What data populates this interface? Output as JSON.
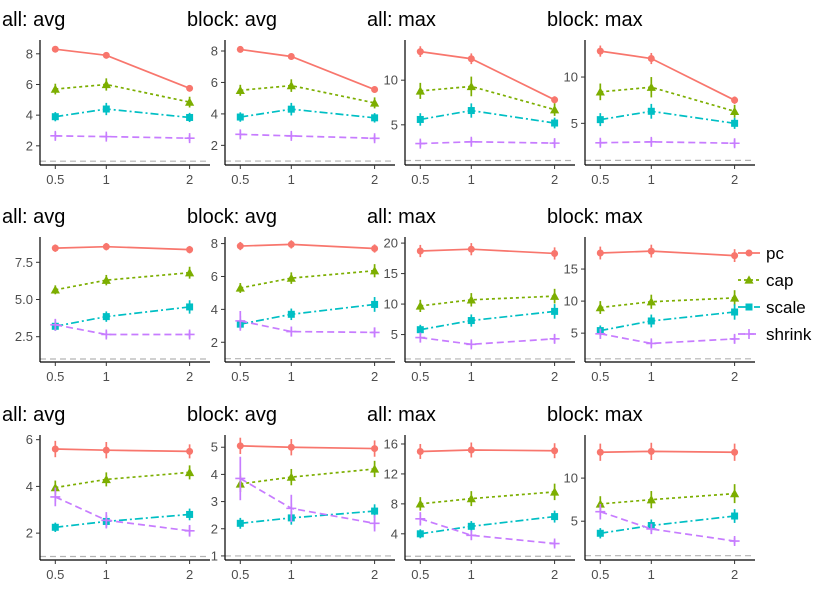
{
  "figure": {
    "x_ticks": [
      "0.5",
      "1",
      "2"
    ],
    "reference_line_y": 1
  },
  "legend": {
    "items": [
      {
        "name": "pc",
        "color": "#F8766D",
        "marker": "circle",
        "dash": "solid"
      },
      {
        "name": "cap",
        "color": "#7CAE00",
        "marker": "triangle",
        "dash": "dotted"
      },
      {
        "name": "scale",
        "color": "#00BFC4",
        "marker": "square",
        "dash": "dashdot"
      },
      {
        "name": "shrink",
        "color": "#C77CFF",
        "marker": "plus",
        "dash": "dashed"
      }
    ]
  },
  "chart_data": [
    {
      "type": "line",
      "title": "all: avg",
      "x": [
        0.5,
        1,
        2
      ],
      "ylim": [
        0.75,
        8.9
      ],
      "yticks": [
        2,
        4,
        6,
        8
      ],
      "ytick_labels": [
        "2",
        "4",
        "6",
        "8"
      ],
      "series": [
        {
          "name": "pc",
          "values": [
            8.3,
            7.9,
            5.75
          ],
          "err": [
            0.2,
            0.2,
            0.2
          ]
        },
        {
          "name": "cap",
          "values": [
            5.7,
            6.0,
            4.85
          ],
          "err": [
            0.35,
            0.4,
            0.35
          ]
        },
        {
          "name": "scale",
          "values": [
            3.9,
            4.4,
            3.85
          ],
          "err": [
            0.3,
            0.4,
            0.3
          ]
        },
        {
          "name": "shrink",
          "values": [
            2.65,
            2.6,
            2.5
          ],
          "err": [
            0.25,
            0.2,
            0.2
          ]
        }
      ]
    },
    {
      "type": "line",
      "title": "block: avg",
      "x": [
        0.5,
        1,
        2
      ],
      "ylim": [
        0.75,
        8.7
      ],
      "yticks": [
        2,
        4,
        6,
        8
      ],
      "ytick_labels": [
        "2",
        "4",
        "6",
        "8"
      ],
      "series": [
        {
          "name": "pc",
          "values": [
            8.1,
            7.65,
            5.55
          ],
          "err": [
            0.2,
            0.2,
            0.2
          ]
        },
        {
          "name": "cap",
          "values": [
            5.5,
            5.8,
            4.7
          ],
          "err": [
            0.35,
            0.4,
            0.35
          ]
        },
        {
          "name": "scale",
          "values": [
            3.8,
            4.3,
            3.75
          ],
          "err": [
            0.3,
            0.4,
            0.3
          ]
        },
        {
          "name": "shrink",
          "values": [
            2.7,
            2.6,
            2.45
          ],
          "err": [
            0.25,
            0.2,
            0.2
          ]
        }
      ]
    },
    {
      "type": "line",
      "title": "all: max",
      "x": [
        0.5,
        1,
        2
      ],
      "ylim": [
        0.5,
        14.5
      ],
      "yticks": [
        5,
        10
      ],
      "ytick_labels": [
        "5",
        "10"
      ],
      "series": [
        {
          "name": "pc",
          "values": [
            13.2,
            12.4,
            7.8
          ],
          "err": [
            0.6,
            0.6,
            0.4
          ]
        },
        {
          "name": "cap",
          "values": [
            8.8,
            9.3,
            6.7
          ],
          "err": [
            0.9,
            1.1,
            0.7
          ]
        },
        {
          "name": "scale",
          "values": [
            5.6,
            6.6,
            5.2
          ],
          "err": [
            0.7,
            0.8,
            0.6
          ]
        },
        {
          "name": "shrink",
          "values": [
            2.9,
            3.1,
            2.95
          ],
          "err": [
            0.4,
            0.4,
            0.4
          ]
        }
      ]
    },
    {
      "type": "line",
      "title": "block: max",
      "x": [
        0.5,
        1,
        2
      ],
      "ylim": [
        0.5,
        14.0
      ],
      "yticks": [
        5,
        10
      ],
      "ytick_labels": [
        "5",
        "10"
      ],
      "series": [
        {
          "name": "pc",
          "values": [
            12.8,
            12.0,
            7.5
          ],
          "err": [
            0.6,
            0.6,
            0.4
          ]
        },
        {
          "name": "cap",
          "values": [
            8.4,
            8.9,
            6.3
          ],
          "err": [
            0.9,
            1.1,
            0.7
          ]
        },
        {
          "name": "scale",
          "values": [
            5.4,
            6.3,
            5.0
          ],
          "err": [
            0.7,
            0.8,
            0.6
          ]
        },
        {
          "name": "shrink",
          "values": [
            2.9,
            3.0,
            2.85
          ],
          "err": [
            0.4,
            0.4,
            0.4
          ]
        }
      ]
    },
    {
      "type": "line",
      "title": "all: avg",
      "x": [
        0.5,
        1,
        2
      ],
      "ylim": [
        0.8,
        9.2
      ],
      "yticks": [
        2.5,
        5.0,
        7.5
      ],
      "ytick_labels": [
        "2.5",
        "5.0",
        "7.5"
      ],
      "series": [
        {
          "name": "pc",
          "values": [
            8.45,
            8.55,
            8.35
          ],
          "err": [
            0.25,
            0.25,
            0.25
          ]
        },
        {
          "name": "cap",
          "values": [
            5.65,
            6.3,
            6.8
          ],
          "err": [
            0.3,
            0.35,
            0.4
          ]
        },
        {
          "name": "scale",
          "values": [
            3.2,
            3.85,
            4.5
          ],
          "err": [
            0.3,
            0.35,
            0.45
          ]
        },
        {
          "name": "shrink",
          "values": [
            3.3,
            2.65,
            2.65
          ],
          "err": [
            0.4,
            0.25,
            0.25
          ]
        }
      ]
    },
    {
      "type": "line",
      "title": "block: avg",
      "x": [
        0.5,
        1,
        2
      ],
      "ylim": [
        0.8,
        8.4
      ],
      "yticks": [
        2,
        4,
        6,
        8
      ],
      "ytick_labels": [
        "2",
        "4",
        "6",
        "8"
      ],
      "series": [
        {
          "name": "pc",
          "values": [
            7.85,
            7.95,
            7.7
          ],
          "err": [
            0.25,
            0.25,
            0.25
          ]
        },
        {
          "name": "cap",
          "values": [
            5.3,
            5.9,
            6.35
          ],
          "err": [
            0.3,
            0.35,
            0.4
          ]
        },
        {
          "name": "scale",
          "values": [
            3.1,
            3.7,
            4.3
          ],
          "err": [
            0.3,
            0.35,
            0.45
          ]
        },
        {
          "name": "shrink",
          "values": [
            3.3,
            2.65,
            2.6
          ],
          "err": [
            0.6,
            0.3,
            0.3
          ]
        }
      ]
    },
    {
      "type": "line",
      "title": "all: max",
      "x": [
        0.5,
        1,
        2
      ],
      "ylim": [
        0.5,
        21.0
      ],
      "yticks": [
        5,
        10,
        15,
        20
      ],
      "ytick_labels": [
        "5",
        "10",
        "15",
        "20"
      ],
      "series": [
        {
          "name": "pc",
          "values": [
            18.7,
            19.0,
            18.3
          ],
          "err": [
            1.0,
            1.0,
            1.0
          ]
        },
        {
          "name": "cap",
          "values": [
            9.7,
            10.7,
            11.3
          ],
          "err": [
            1.0,
            1.1,
            1.2
          ]
        },
        {
          "name": "scale",
          "values": [
            5.8,
            7.3,
            8.8
          ],
          "err": [
            0.8,
            1.0,
            1.2
          ]
        },
        {
          "name": "shrink",
          "values": [
            4.5,
            3.4,
            4.3
          ],
          "err": [
            0.8,
            0.6,
            0.7
          ]
        }
      ]
    },
    {
      "type": "line",
      "title": "block: max",
      "x": [
        0.5,
        1,
        2
      ],
      "ylim": [
        0.5,
        20.0
      ],
      "yticks": [
        5,
        10,
        15
      ],
      "ytick_labels": [
        "5",
        "10",
        "15"
      ],
      "series": [
        {
          "name": "pc",
          "values": [
            17.5,
            17.8,
            17.1
          ],
          "err": [
            1.0,
            1.0,
            1.0
          ]
        },
        {
          "name": "cap",
          "values": [
            9.0,
            9.9,
            10.5
          ],
          "err": [
            1.0,
            1.1,
            1.2
          ]
        },
        {
          "name": "scale",
          "values": [
            5.4,
            6.9,
            8.3
          ],
          "err": [
            0.8,
            1.0,
            1.2
          ]
        },
        {
          "name": "shrink",
          "values": [
            4.9,
            3.4,
            4.1
          ],
          "err": [
            0.8,
            0.6,
            0.7
          ]
        }
      ]
    },
    {
      "type": "line",
      "title": "all: avg",
      "x": [
        0.5,
        1,
        2
      ],
      "ylim": [
        0.85,
        6.2
      ],
      "yticks": [
        2,
        4,
        6
      ],
      "ytick_labels": [
        "2",
        "4",
        "6"
      ],
      "series": [
        {
          "name": "pc",
          "values": [
            5.6,
            5.55,
            5.5
          ],
          "err": [
            0.35,
            0.35,
            0.3
          ]
        },
        {
          "name": "cap",
          "values": [
            3.95,
            4.3,
            4.6
          ],
          "err": [
            0.3,
            0.3,
            0.3
          ]
        },
        {
          "name": "scale",
          "values": [
            2.25,
            2.5,
            2.8
          ],
          "err": [
            0.2,
            0.25,
            0.25
          ]
        },
        {
          "name": "shrink",
          "values": [
            3.55,
            2.55,
            2.1
          ],
          "err": [
            0.4,
            0.35,
            0.25
          ]
        }
      ]
    },
    {
      "type": "line",
      "title": "block: avg",
      "x": [
        0.5,
        1,
        2
      ],
      "ylim": [
        0.85,
        5.45
      ],
      "yticks": [
        1,
        2,
        3,
        4,
        5
      ],
      "ytick_labels": [
        "1",
        "2",
        "3",
        "4",
        "5"
      ],
      "series": [
        {
          "name": "pc",
          "values": [
            5.05,
            5.0,
            4.95
          ],
          "err": [
            0.3,
            0.3,
            0.3
          ]
        },
        {
          "name": "cap",
          "values": [
            3.65,
            3.9,
            4.2
          ],
          "err": [
            0.3,
            0.3,
            0.3
          ]
        },
        {
          "name": "scale",
          "values": [
            2.2,
            2.4,
            2.65
          ],
          "err": [
            0.2,
            0.25,
            0.25
          ]
        },
        {
          "name": "shrink",
          "values": [
            3.85,
            2.75,
            2.2
          ],
          "err": [
            0.8,
            0.5,
            0.3
          ]
        }
      ]
    },
    {
      "type": "line",
      "title": "all: max",
      "x": [
        0.5,
        1,
        2
      ],
      "ylim": [
        0.5,
        17.2
      ],
      "yticks": [
        4,
        8,
        12,
        16
      ],
      "ytick_labels": [
        "4",
        "8",
        "12",
        "16"
      ],
      "series": [
        {
          "name": "pc",
          "values": [
            15.0,
            15.2,
            15.1
          ],
          "err": [
            1.0,
            1.0,
            1.0
          ]
        },
        {
          "name": "cap",
          "values": [
            8.0,
            8.7,
            9.6
          ],
          "err": [
            0.9,
            1.0,
            1.1
          ]
        },
        {
          "name": "scale",
          "values": [
            4.0,
            5.0,
            6.3
          ],
          "err": [
            0.6,
            0.7,
            0.8
          ]
        },
        {
          "name": "shrink",
          "values": [
            6.0,
            3.8,
            2.7
          ],
          "err": [
            0.9,
            0.6,
            0.4
          ]
        }
      ]
    },
    {
      "type": "line",
      "title": "block: max",
      "x": [
        0.5,
        1,
        2
      ],
      "ylim": [
        0.5,
        15.0
      ],
      "yticks": [
        5,
        10
      ],
      "ytick_labels": [
        "5",
        "10"
      ],
      "series": [
        {
          "name": "pc",
          "values": [
            13.0,
            13.1,
            13.0
          ],
          "err": [
            1.0,
            1.0,
            1.0
          ]
        },
        {
          "name": "cap",
          "values": [
            7.0,
            7.5,
            8.2
          ],
          "err": [
            0.9,
            1.0,
            1.1
          ]
        },
        {
          "name": "scale",
          "values": [
            3.6,
            4.5,
            5.6
          ],
          "err": [
            0.6,
            0.7,
            0.8
          ]
        },
        {
          "name": "shrink",
          "values": [
            6.1,
            4.1,
            2.7
          ],
          "err": [
            0.9,
            0.6,
            0.4
          ]
        }
      ]
    }
  ]
}
